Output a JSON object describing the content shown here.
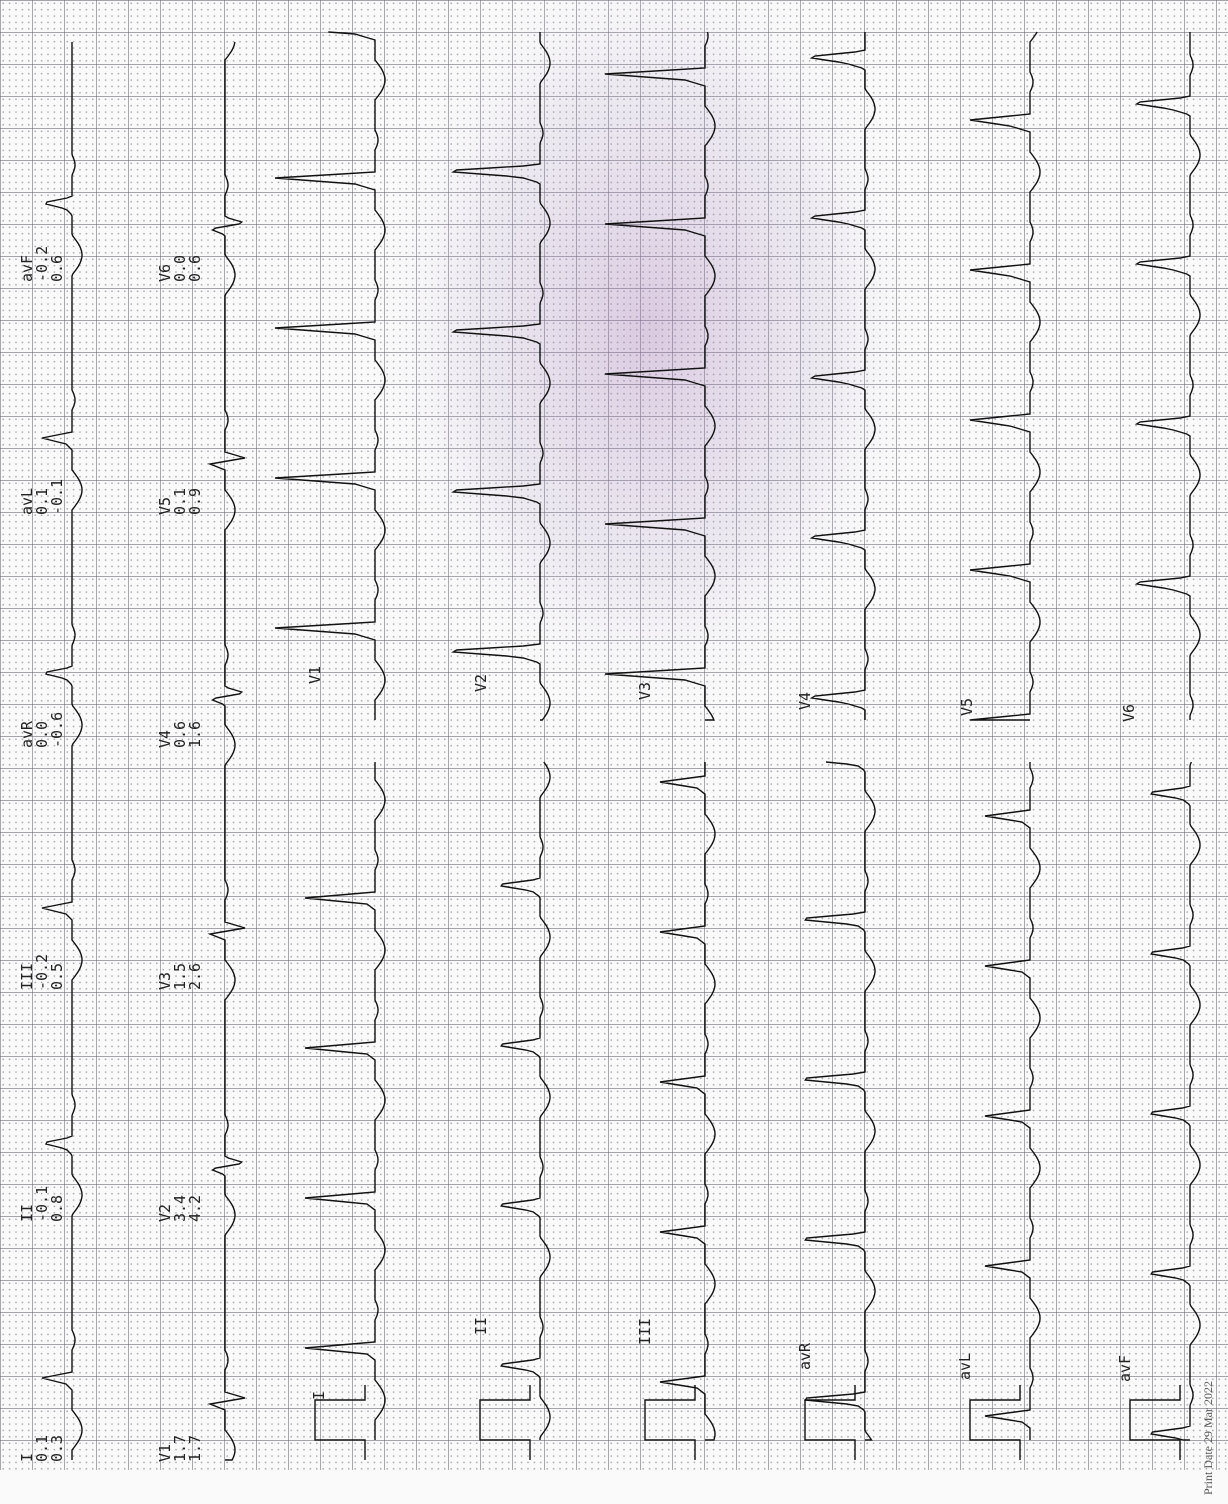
{
  "measurements": [
    {
      "lead": "I",
      "values": [
        "0.1",
        "0.3"
      ]
    },
    {
      "lead": "II",
      "values": [
        "-0.1",
        "0.8"
      ]
    },
    {
      "lead": "III",
      "values": [
        "-0.2",
        "0.5"
      ]
    },
    {
      "lead": "avR",
      "values": [
        "0.0",
        "-0.6"
      ]
    },
    {
      "lead": "avL",
      "values": [
        "0.1",
        "-0.1"
      ]
    },
    {
      "lead": "avF",
      "values": [
        "-0.2",
        "0.6"
      ]
    },
    {
      "lead": "V1",
      "values": [
        "1.7",
        "1.7"
      ]
    },
    {
      "lead": "V2",
      "values": [
        "3.4",
        "4.2"
      ]
    },
    {
      "lead": "V3",
      "values": [
        "1.5",
        "2.6"
      ]
    },
    {
      "lead": "V4",
      "values": [
        "0.6",
        "1.6"
      ]
    },
    {
      "lead": "V5",
      "values": [
        "0.1",
        "0.9"
      ]
    },
    {
      "lead": "V6",
      "values": [
        "0.0",
        "0.6"
      ]
    }
  ],
  "strip_labels": {
    "limb": [
      "I",
      "II",
      "III",
      "avR",
      "avL",
      "avF"
    ],
    "chest": [
      "V1",
      "V2",
      "V3",
      "V4",
      "V5",
      "V6"
    ]
  },
  "print_date": "Print Date 29 Mar 2022"
}
